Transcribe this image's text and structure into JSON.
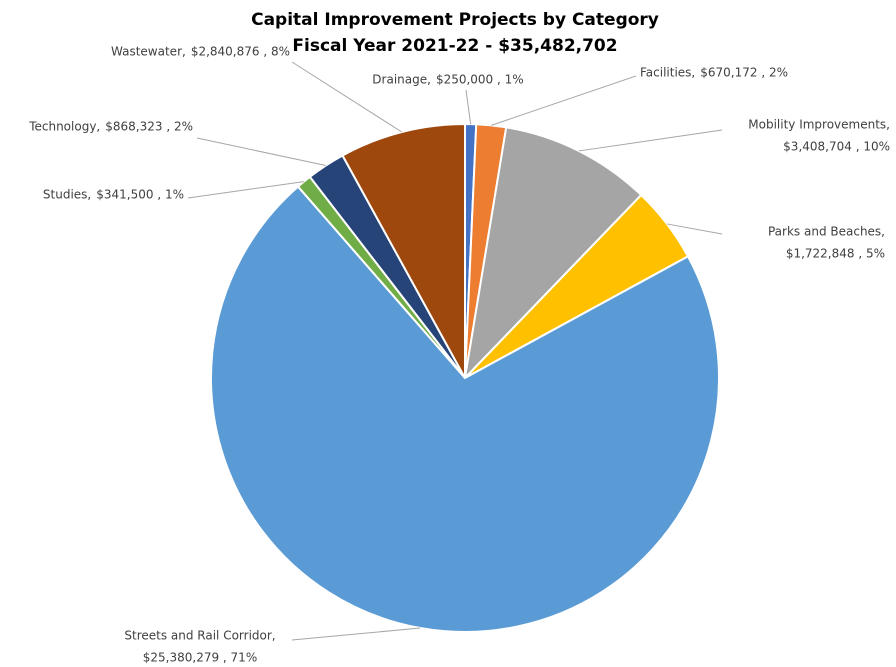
{
  "chart_data": {
    "type": "pie",
    "title": "Capital Improvement Projects by Category",
    "subtitle": "Fiscal Year 2021-22 - $35,482,702",
    "categories": [
      "Drainage,",
      "Facilities,",
      "Mobility Improvements,",
      "Parks and Beaches,",
      "Streets and Rail Corridor,",
      "Studies,",
      "Technology,",
      "Wastewater,"
    ],
    "values": [
      250000,
      670172,
      3408704,
      1722848,
      25380279,
      341500,
      868323,
      2840876
    ],
    "value_labels": [
      "$250,000 , 1%",
      "$670,172 , 2%",
      "$3,408,704 , 10%",
      "$1,722,848 , 5%",
      "$25,380,279 , 71%",
      "$341,500 , 1%",
      "$868,323 , 2%",
      "$2,840,876 , 8%"
    ],
    "colors": [
      "#4472c4",
      "#ed7d31",
      "#a5a5a5",
      "#ffc000",
      "#5b9bd5",
      "#70ad47",
      "#264478",
      "#9e480e"
    ]
  }
}
